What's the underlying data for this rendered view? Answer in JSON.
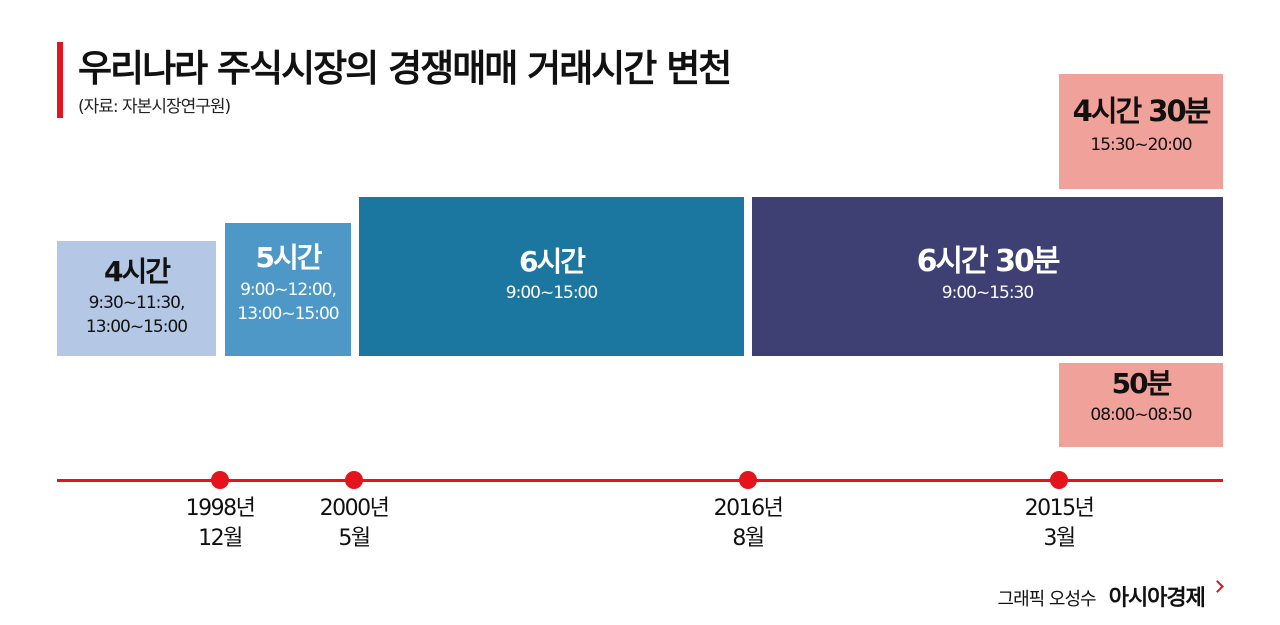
{
  "header": {
    "title": "우리나라 주식시장의 경쟁매매 거래시간 변천",
    "source": "(자료: 자본시장연구원)"
  },
  "periods": [
    {
      "duration": "4시간",
      "times": [
        "9:30~11:30,",
        "13:00~15:00"
      ]
    },
    {
      "duration": "5시간",
      "times": [
        "9:00~12:00,",
        "13:00~15:00"
      ]
    },
    {
      "duration": "6시간",
      "times": [
        "9:00~15:00"
      ]
    },
    {
      "duration": "6시간 30분",
      "times": [
        "9:00~15:30"
      ]
    }
  ],
  "extra_sessions": {
    "after_hours": {
      "duration": "4시간 30분",
      "time": "15:30~20:00"
    },
    "pre_market": {
      "duration": "50분",
      "time": "08:00~08:50"
    }
  },
  "timeline": [
    {
      "year": "1998년",
      "month": "12월"
    },
    {
      "year": "2000년",
      "month": "5월"
    },
    {
      "year": "2016년",
      "month": "8월"
    },
    {
      "year": "2015년",
      "month": "3월"
    }
  ],
  "credit": {
    "byline": "그래픽 오성수",
    "brand": "아시아경제"
  },
  "colors": {
    "accent_red": "#e3141b",
    "period_1": "#b4c7e4",
    "period_2": "#4e98c7",
    "period_3": "#1c77a0",
    "period_4": "#3e3f73",
    "extra_session": "#f0a19a"
  }
}
